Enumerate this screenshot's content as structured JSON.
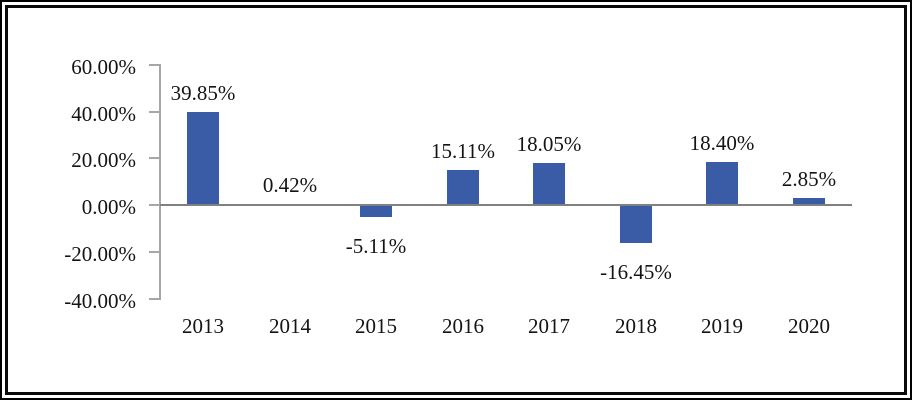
{
  "chart_data": {
    "type": "bar",
    "title": "",
    "xlabel": "",
    "ylabel": "",
    "categories": [
      "2013",
      "2014",
      "2015",
      "2016",
      "2017",
      "2018",
      "2019",
      "2020"
    ],
    "values": [
      39.85,
      0.42,
      -5.11,
      15.11,
      18.05,
      -16.45,
      18.4,
      2.85
    ],
    "value_labels": [
      "39.85%",
      "0.42%",
      "-5.11%",
      "15.11%",
      "18.05%",
      "-16.45%",
      "18.40%",
      "2.85%"
    ],
    "ylim": [
      -40,
      60
    ],
    "yticks": [
      60,
      40,
      20,
      0,
      -20,
      -40
    ],
    "ytick_labels": [
      "60.00%",
      "40.00%",
      "20.00%",
      "0.00%",
      "-20.00%",
      "-40.00%"
    ],
    "grid": false,
    "legend": "none",
    "bar_color": "#3A5BA5",
    "axis_color": "#A6A6A6",
    "zero_line_color": "#808080",
    "text_color": "#141414",
    "frame_color": "#000000",
    "background_color": "#FFFFFF"
  }
}
